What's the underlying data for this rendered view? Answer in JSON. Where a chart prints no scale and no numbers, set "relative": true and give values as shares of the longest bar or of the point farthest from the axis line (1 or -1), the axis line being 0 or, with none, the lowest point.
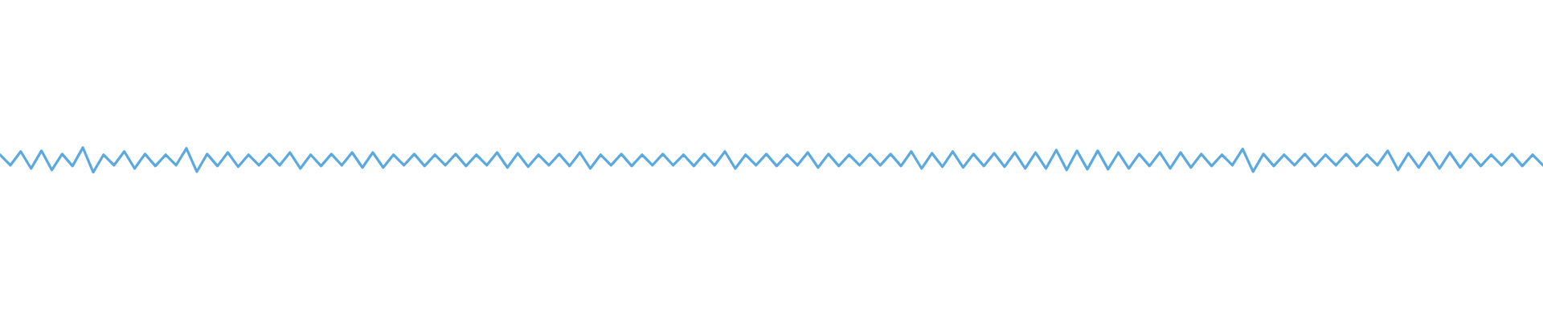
{
  "chart_data": {
    "type": "line",
    "relative": true,
    "color": "#5aa9e1",
    "categories": [
      null,
      null,
      null,
      null,
      null,
      null,
      null,
      null,
      null,
      null,
      null,
      null,
      null,
      null,
      null,
      null,
      null,
      null,
      null,
      null,
      null,
      null,
      null,
      null,
      null,
      null,
      null,
      null,
      null,
      null,
      null,
      null,
      null,
      null,
      null,
      null,
      null,
      null,
      null,
      null,
      null,
      null,
      null,
      null,
      null,
      null,
      null,
      null,
      null,
      null,
      null,
      null,
      null,
      null,
      null,
      null,
      null,
      null,
      null,
      null,
      null,
      null,
      null,
      null,
      null,
      null,
      null,
      null,
      null,
      null,
      null,
      null,
      null,
      null,
      null,
      null,
      null,
      null,
      null,
      null,
      null,
      null,
      null,
      null,
      null,
      null,
      null,
      null,
      null,
      null,
      null,
      null,
      null,
      null,
      null,
      null,
      null,
      null,
      null,
      null,
      null,
      null,
      null,
      null,
      null,
      null,
      null,
      null,
      null,
      null,
      null,
      null,
      null,
      null,
      null,
      null,
      null,
      null,
      null,
      null,
      null,
      null,
      null,
      null,
      null,
      null,
      null,
      null,
      null,
      null,
      null,
      null,
      null,
      null,
      null,
      null,
      null,
      null,
      null,
      null,
      null,
      null,
      null,
      null,
      null,
      null,
      null,
      null,
      null,
      null
    ],
    "values": [
      0.71,
      0.28,
      0.84,
      0.15,
      0.87,
      0.09,
      0.74,
      0.25,
      1.0,
      0.0,
      0.71,
      0.28,
      0.84,
      0.15,
      0.74,
      0.25,
      0.71,
      0.28,
      0.97,
      0.02,
      0.74,
      0.25,
      0.8,
      0.22,
      0.71,
      0.28,
      0.74,
      0.28,
      0.8,
      0.15,
      0.71,
      0.25,
      0.74,
      0.28,
      0.8,
      0.19,
      0.8,
      0.19,
      0.71,
      0.28,
      0.74,
      0.25,
      0.71,
      0.28,
      0.74,
      0.25,
      0.71,
      0.28,
      0.8,
      0.19,
      0.77,
      0.22,
      0.71,
      0.28,
      0.74,
      0.25,
      0.8,
      0.15,
      0.71,
      0.28,
      0.74,
      0.25,
      0.71,
      0.28,
      0.74,
      0.28,
      0.71,
      0.25,
      0.74,
      0.28,
      0.84,
      0.15,
      0.71,
      0.28,
      0.74,
      0.25,
      0.71,
      0.28,
      0.8,
      0.19,
      0.74,
      0.25,
      0.71,
      0.28,
      0.74,
      0.28,
      0.74,
      0.25,
      0.84,
      0.15,
      0.77,
      0.22,
      0.84,
      0.19,
      0.74,
      0.25,
      0.77,
      0.22,
      0.8,
      0.15,
      0.8,
      0.15,
      0.9,
      0.09,
      0.87,
      0.12,
      0.87,
      0.12,
      0.8,
      0.15,
      0.74,
      0.25,
      0.8,
      0.15,
      0.8,
      0.19,
      0.74,
      0.25,
      0.71,
      0.28,
      0.94,
      0.02,
      0.74,
      0.25,
      0.71,
      0.28,
      0.74,
      0.25,
      0.71,
      0.28,
      0.74,
      0.25,
      0.71,
      0.28,
      0.87,
      0.09,
      0.77,
      0.19,
      0.8,
      0.15,
      0.8,
      0.19,
      0.74,
      0.25,
      0.71,
      0.28,
      0.74,
      0.25,
      0.71,
      0.28
    ]
  }
}
